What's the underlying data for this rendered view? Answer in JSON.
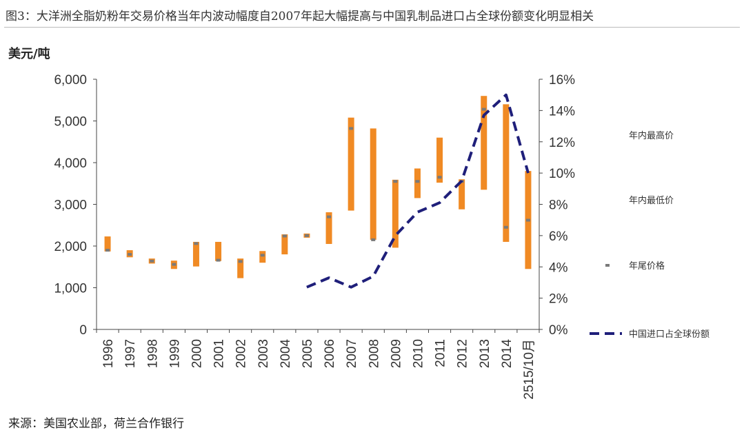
{
  "figure_title": "图3：大洋洲全脂奶粉年交易价格当年内波动幅度自2007年起大幅提高与中国乳制品进口占全球份额变化明显相关",
  "source_note": "来源：美国农业部，荷兰合作银行",
  "colors": {
    "bar": "#F08A24",
    "marker": "#7a7a7a",
    "share_line": "#1f1f7a",
    "axis": "#444444"
  },
  "chart_data": {
    "type": "bar",
    "subtype": "high-low with year-end marker and secondary-axis line",
    "title": "大洋洲全脂奶粉年交易价格当年内波动幅度自2007年起大幅提高与中国乳制品进口占全球份额变化明显相关",
    "ylabel": "美元/吨",
    "ylim": [
      0,
      6000
    ],
    "y_ticks": [
      "6,000",
      "5,000",
      "4,000",
      "3,000",
      "2,000",
      "1,000",
      "0"
    ],
    "y2lim": [
      0,
      16
    ],
    "y2_ticks": [
      "16%",
      "14%",
      "12%",
      "10%",
      "8%",
      "6%",
      "4%",
      "2%",
      "0%"
    ],
    "categories": [
      "1996",
      "1997",
      "1998",
      "1999",
      "2000",
      "2001",
      "2002",
      "2003",
      "2004",
      "2005",
      "2006",
      "2007",
      "2008",
      "2009",
      "2010",
      "2011",
      "2012",
      "2013",
      "2014",
      "2515/10月"
    ],
    "series": [
      {
        "name": "年内最高价",
        "values": [
          2230,
          1900,
          1700,
          1650,
          2100,
          2100,
          1700,
          1880,
          2280,
          2300,
          2810,
          5080,
          4820,
          3590,
          3860,
          4600,
          3600,
          5600,
          5400,
          3800
        ]
      },
      {
        "name": "年内最低价",
        "values": [
          1870,
          1730,
          1580,
          1450,
          1510,
          1640,
          1230,
          1600,
          1800,
          2200,
          2050,
          2850,
          2150,
          1960,
          3150,
          3520,
          2880,
          3350,
          2100,
          1450
        ]
      },
      {
        "name": "年尾价格",
        "values": [
          1900,
          1800,
          1640,
          1560,
          2060,
          1660,
          1630,
          1780,
          2240,
          2250,
          2700,
          4820,
          2150,
          3550,
          3550,
          3650,
          3550,
          5280,
          2450,
          2620
        ]
      },
      {
        "name": "中国进口占全球份额",
        "axis": "right",
        "unit": "%",
        "values": [
          null,
          null,
          null,
          null,
          null,
          null,
          null,
          null,
          null,
          2.7,
          3.3,
          2.7,
          3.4,
          6.0,
          7.5,
          8.1,
          9.5,
          13.7,
          15.0,
          10.0
        ]
      }
    ],
    "legend": {
      "placement": "right",
      "entries": [
        "年内最高价",
        "年内最低价",
        "年尾价格",
        "中国进口占全球份额"
      ]
    }
  }
}
